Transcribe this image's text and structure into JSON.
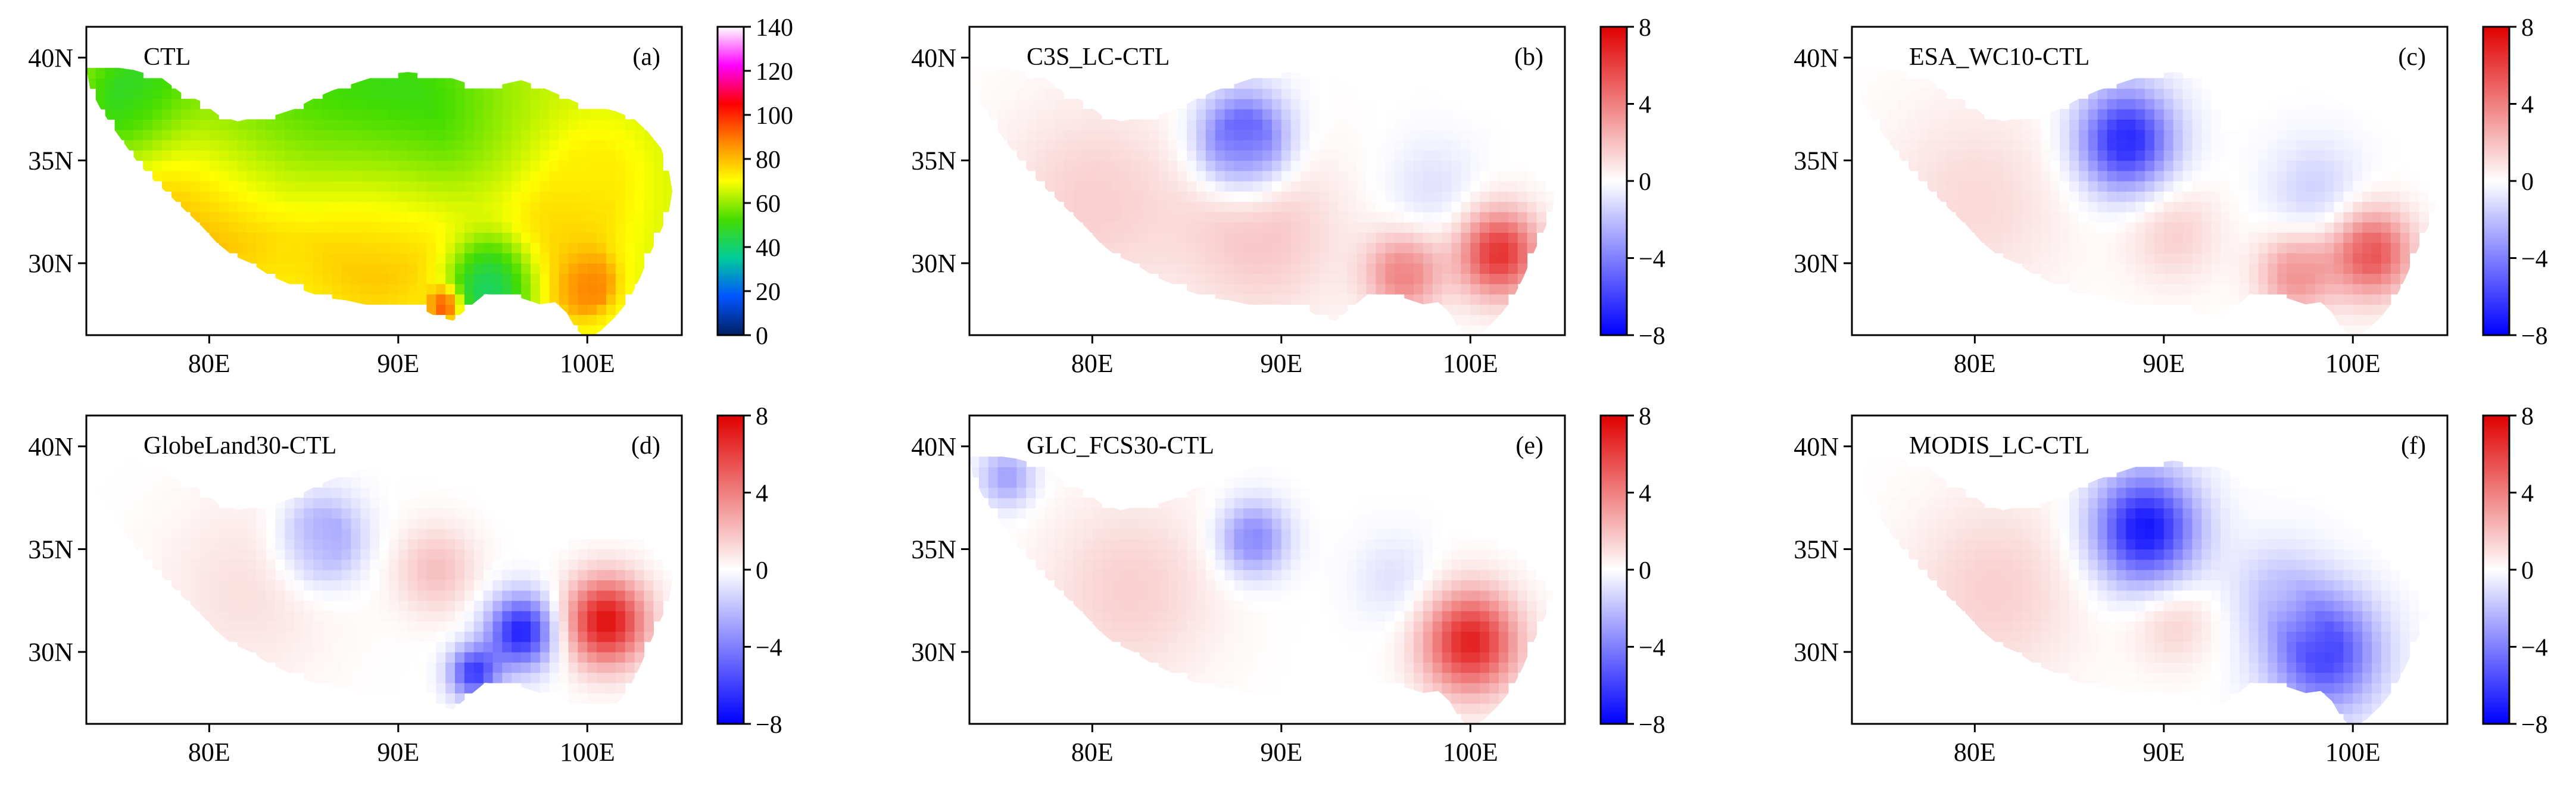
{
  "figure": {
    "colors": {
      "land": "#c8c8c8",
      "frame": "#000000"
    },
    "map_outline_lonlat": [
      [
        73.5,
        39.5
      ],
      [
        74.5,
        39.6
      ],
      [
        76.0,
        39.4
      ],
      [
        77.5,
        39.0
      ],
      [
        78.5,
        38.3
      ],
      [
        79.5,
        37.9
      ],
      [
        80.5,
        37.2
      ],
      [
        81.5,
        36.9
      ],
      [
        82.5,
        37.1
      ],
      [
        83.5,
        37.2
      ],
      [
        84.5,
        37.5
      ],
      [
        85.5,
        38.0
      ],
      [
        86.5,
        38.4
      ],
      [
        87.5,
        38.7
      ],
      [
        88.5,
        39.0
      ],
      [
        89.5,
        39.2
      ],
      [
        90.5,
        39.3
      ],
      [
        91.5,
        39.2
      ],
      [
        92.5,
        39.1
      ],
      [
        93.5,
        38.8
      ],
      [
        94.5,
        38.6
      ],
      [
        95.5,
        38.7
      ],
      [
        96.5,
        38.9
      ],
      [
        97.5,
        38.6
      ],
      [
        98.5,
        38.2
      ],
      [
        99.5,
        37.8
      ],
      [
        100.5,
        37.6
      ],
      [
        101.5,
        37.4
      ],
      [
        102.5,
        37.0
      ],
      [
        103.2,
        36.4
      ],
      [
        103.9,
        35.6
      ],
      [
        104.3,
        34.6
      ],
      [
        104.5,
        33.5
      ],
      [
        104.3,
        32.4
      ],
      [
        103.8,
        31.4
      ],
      [
        103.3,
        30.4
      ],
      [
        102.8,
        29.3
      ],
      [
        102.2,
        28.2
      ],
      [
        101.5,
        27.4
      ],
      [
        100.7,
        26.7
      ],
      [
        100.0,
        26.3
      ],
      [
        99.4,
        26.8
      ],
      [
        98.9,
        27.6
      ],
      [
        98.3,
        28.1
      ],
      [
        97.5,
        28.0
      ],
      [
        96.5,
        28.3
      ],
      [
        95.5,
        28.4
      ],
      [
        94.6,
        28.5
      ],
      [
        93.8,
        27.9
      ],
      [
        92.9,
        27.2
      ],
      [
        92.0,
        27.4
      ],
      [
        91.2,
        27.8
      ],
      [
        90.2,
        27.9
      ],
      [
        89.2,
        27.8
      ],
      [
        88.2,
        28.0
      ],
      [
        87.2,
        28.2
      ],
      [
        86.2,
        28.3
      ],
      [
        85.2,
        28.6
      ],
      [
        84.2,
        29.0
      ],
      [
        83.2,
        29.4
      ],
      [
        82.2,
        30.0
      ],
      [
        81.2,
        30.4
      ],
      [
        80.4,
        31.0
      ],
      [
        79.6,
        31.8
      ],
      [
        78.8,
        32.5
      ],
      [
        77.9,
        33.3
      ],
      [
        77.1,
        34.0
      ],
      [
        76.3,
        34.8
      ],
      [
        75.6,
        35.7
      ],
      [
        74.9,
        36.6
      ],
      [
        74.2,
        37.6
      ],
      [
        73.7,
        38.5
      ],
      [
        73.5,
        39.5
      ]
    ],
    "panels": [
      {
        "id": "a",
        "title": "CTL",
        "panel_label": "(a)",
        "type": "heatmap",
        "colorbar": {
          "ticks": [
            "140",
            "120",
            "100",
            "80",
            "60",
            "40",
            "20",
            "0"
          ],
          "colors": [
            "#ffffff",
            "#ff00ff",
            "#ff0000",
            "#ff8800",
            "#ffff00",
            "#44dd00",
            "#00cc99",
            "#0055ff",
            "#002060"
          ]
        }
      },
      {
        "id": "b",
        "title": "C3S_LC-CTL",
        "panel_label": "(b)",
        "type": "heatmap",
        "colorbar": {
          "ticks": [
            "8",
            "4",
            "0",
            "−4",
            "−8"
          ],
          "colors": [
            "#e00000",
            "#ffffff",
            "#0000ff"
          ]
        }
      },
      {
        "id": "c",
        "title": "ESA_WC10-CTL",
        "panel_label": "(c)",
        "type": "heatmap",
        "colorbar": {
          "ticks": [
            "8",
            "4",
            "0",
            "−4",
            "−8"
          ],
          "colors": [
            "#e00000",
            "#ffffff",
            "#0000ff"
          ]
        }
      },
      {
        "id": "d",
        "title": "GlobeLand30-CTL",
        "panel_label": "(d)",
        "type": "heatmap",
        "colorbar": {
          "ticks": [
            "8",
            "4",
            "0",
            "−4",
            "−8"
          ],
          "colors": [
            "#e00000",
            "#ffffff",
            "#0000ff"
          ]
        }
      },
      {
        "id": "e",
        "title": "GLC_FCS30-CTL",
        "panel_label": "(e)",
        "type": "heatmap",
        "colorbar": {
          "ticks": [
            "8",
            "4",
            "0",
            "−4",
            "−8"
          ],
          "colors": [
            "#e00000",
            "#ffffff",
            "#0000ff"
          ]
        }
      },
      {
        "id": "f",
        "title": "MODIS_LC-CTL",
        "panel_label": "(f)",
        "type": "heatmap",
        "colorbar": {
          "ticks": [
            "8",
            "4",
            "0",
            "−4",
            "−8"
          ],
          "colors": [
            "#e00000",
            "#ffffff",
            "#0000ff"
          ]
        }
      }
    ],
    "x_ticks": [
      "80E",
      "90E",
      "100E"
    ],
    "y_ticks": [
      "40N",
      "35N",
      "30N"
    ]
  },
  "chart_data": {
    "type": "heatmap",
    "x": {
      "units": "degrees_east",
      "range": [
        73.5,
        105
      ],
      "tick_values": [
        80,
        90,
        100
      ],
      "tick_labels": [
        "80E",
        "90E",
        "100E"
      ]
    },
    "y": {
      "units": "degrees_north",
      "range": [
        26.5,
        41.5
      ],
      "tick_values": [
        40,
        35,
        30
      ],
      "tick_labels": [
        "40N",
        "35N",
        "30N"
      ]
    },
    "panels": [
      {
        "id": "a",
        "title": "CTL",
        "label": "(a)",
        "colorbar_range": [
          0,
          140
        ],
        "colorbar_ticks": [
          0,
          20,
          40,
          60,
          80,
          100,
          120,
          140
        ],
        "regions": [
          {
            "lon": 80.0,
            "lat": 33.0,
            "value": 85,
            "r": 6.5
          },
          {
            "lon": 89.0,
            "lat": 31.0,
            "value": 82,
            "r": 6.5
          },
          {
            "lon": 98.0,
            "lat": 30.0,
            "value": 78,
            "r": 5.5
          },
          {
            "lon": 90.0,
            "lat": 37.0,
            "value": 48,
            "r": 7.5
          },
          {
            "lon": 82.0,
            "lat": 36.5,
            "value": 50,
            "r": 6.0
          },
          {
            "lon": 100.5,
            "lat": 34.5,
            "value": 72,
            "r": 4.5
          },
          {
            "lon": 76.0,
            "lat": 38.0,
            "value": 45,
            "r": 4.0
          },
          {
            "lon": 95.0,
            "lat": 29.0,
            "value": 18,
            "r": 2.8
          },
          {
            "lon": 100.0,
            "lat": 29.0,
            "value": 95,
            "r": 1.8
          },
          {
            "lon": 92.5,
            "lat": 28.0,
            "value": 110,
            "r": 1.0
          }
        ]
      },
      {
        "id": "b",
        "title": "C3S_LC-CTL",
        "label": "(b)",
        "colorbar_range": [
          -8,
          8
        ],
        "colorbar_ticks": [
          -8,
          -4,
          0,
          4,
          8
        ],
        "regions": [
          {
            "lon": 80.0,
            "lat": 33.0,
            "value": 1.5,
            "r": 7.0
          },
          {
            "lon": 89.0,
            "lat": 31.5,
            "value": 1.8,
            "r": 6.0
          },
          {
            "lon": 88.0,
            "lat": 36.0,
            "value": -6.5,
            "r": 3.2
          },
          {
            "lon": 101.5,
            "lat": 30.5,
            "value": 6.5,
            "r": 3.0
          },
          {
            "lon": 96.5,
            "lat": 29.5,
            "value": 4.0,
            "r": 2.8
          },
          {
            "lon": 98.0,
            "lat": 33.5,
            "value": -1.0,
            "r": 3.5
          }
        ]
      },
      {
        "id": "c",
        "title": "ESA_WC10-CTL",
        "label": "(c)",
        "colorbar_range": [
          -8,
          8
        ],
        "colorbar_ticks": [
          -8,
          -4,
          0,
          4,
          8
        ],
        "regions": [
          {
            "lon": 80.0,
            "lat": 33.0,
            "value": 1.2,
            "r": 7.0
          },
          {
            "lon": 88.0,
            "lat": 36.0,
            "value": -7.0,
            "r": 3.5
          },
          {
            "lon": 101.0,
            "lat": 30.5,
            "value": 5.5,
            "r": 3.0
          },
          {
            "lon": 97.0,
            "lat": 29.5,
            "value": 3.5,
            "r": 2.8
          },
          {
            "lon": 98.0,
            "lat": 33.5,
            "value": -1.5,
            "r": 3.5
          },
          {
            "lon": 90.5,
            "lat": 31.5,
            "value": 1.5,
            "r": 3.5
          }
        ]
      },
      {
        "id": "d",
        "title": "GlobeLand30-CTL",
        "label": "(d)",
        "colorbar_range": [
          -8,
          8
        ],
        "colorbar_ticks": [
          -8,
          -4,
          0,
          4,
          8
        ],
        "regions": [
          {
            "lon": 82.0,
            "lat": 33.0,
            "value": 1.0,
            "r": 6.5
          },
          {
            "lon": 86.0,
            "lat": 35.5,
            "value": -3.5,
            "r": 3.0
          },
          {
            "lon": 96.5,
            "lat": 31.0,
            "value": -7.0,
            "r": 2.5
          },
          {
            "lon": 101.0,
            "lat": 31.5,
            "value": 7.5,
            "r": 3.0
          },
          {
            "lon": 94.0,
            "lat": 29.0,
            "value": -6.0,
            "r": 1.8
          },
          {
            "lon": 92.0,
            "lat": 34.0,
            "value": 2.0,
            "r": 3.0
          }
        ]
      },
      {
        "id": "e",
        "title": "GLC_FCS30-CTL",
        "label": "(e)",
        "colorbar_range": [
          -8,
          8
        ],
        "colorbar_ticks": [
          -8,
          -4,
          0,
          4,
          8
        ],
        "regions": [
          {
            "lon": 82.0,
            "lat": 33.0,
            "value": 1.5,
            "r": 6.5
          },
          {
            "lon": 88.5,
            "lat": 35.5,
            "value": -4.0,
            "r": 2.5
          },
          {
            "lon": 100.0,
            "lat": 30.5,
            "value": 7.0,
            "r": 3.5
          },
          {
            "lon": 75.5,
            "lat": 38.5,
            "value": -3.0,
            "r": 2.0
          },
          {
            "lon": 96.0,
            "lat": 33.5,
            "value": -1.0,
            "r": 3.0
          }
        ]
      },
      {
        "id": "f",
        "title": "MODIS_LC-CTL",
        "label": "(f)",
        "colorbar_range": [
          -8,
          8
        ],
        "colorbar_ticks": [
          -8,
          -4,
          0,
          4,
          8
        ],
        "regions": [
          {
            "lon": 81.0,
            "lat": 33.0,
            "value": 1.5,
            "r": 6.5
          },
          {
            "lon": 89.0,
            "lat": 36.0,
            "value": -7.5,
            "r": 3.8
          },
          {
            "lon": 98.5,
            "lat": 30.0,
            "value": -6.0,
            "r": 4.0
          },
          {
            "lon": 96.0,
            "lat": 33.0,
            "value": -1.5,
            "r": 3.5
          },
          {
            "lon": 90.5,
            "lat": 31.5,
            "value": 1.5,
            "r": 3.0
          }
        ]
      }
    ]
  }
}
